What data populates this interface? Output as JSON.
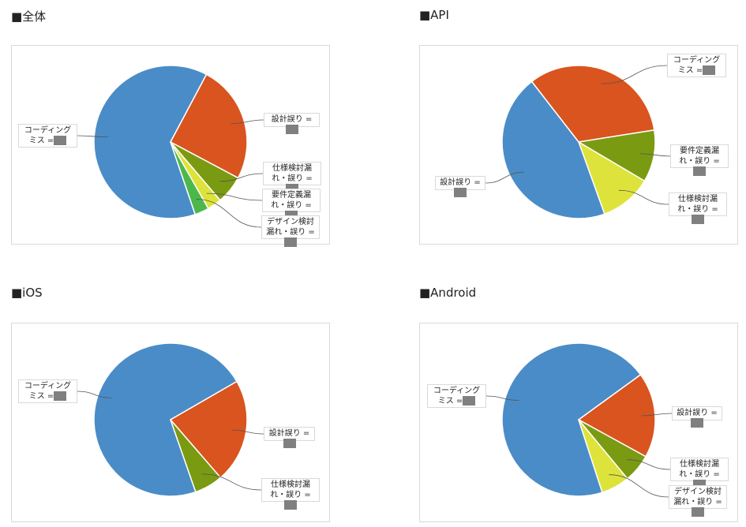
{
  "chart_data": [
    {
      "type": "pie",
      "title": "■全体",
      "categories": [
        "コーディングミス =",
        "設計誤り =",
        "仕様検討漏れ・誤り =",
        "要件定義漏れ・誤り =",
        "デザイン検討漏れ・誤り ="
      ],
      "values": [
        63,
        25,
        6,
        3,
        3
      ],
      "colors": [
        "#4a8cc7",
        "#d9541e",
        "#7a9a12",
        "#dde33a",
        "#4cb84c"
      ]
    },
    {
      "type": "pie",
      "title": "■API",
      "categories": [
        "コーディングミス =",
        "要件定義漏れ・誤り =",
        "仕様検討漏れ・誤り =",
        "設計誤り ="
      ],
      "values": [
        33,
        11,
        11,
        45
      ],
      "colors": [
        "#d9541e",
        "#7a9a12",
        "#dde33a",
        "#4a8cc7"
      ]
    },
    {
      "type": "pie",
      "title": "■iOS",
      "categories": [
        "コーディングミス =",
        "設計誤り =",
        "仕様検討漏れ・誤り ="
      ],
      "values": [
        72,
        22,
        6
      ],
      "colors": [
        "#4a8cc7",
        "#d9541e",
        "#7a9a12"
      ]
    },
    {
      "type": "pie",
      "title": "■Android",
      "categories": [
        "コーディングミス =",
        "設計誤り =",
        "仕様検討漏れ・誤り =",
        "デザイン検討漏れ・誤り ="
      ],
      "values": [
        70,
        18,
        6,
        6
      ],
      "colors": [
        "#4a8cc7",
        "#d9541e",
        "#7a9a12",
        "#dde33a"
      ]
    }
  ]
}
